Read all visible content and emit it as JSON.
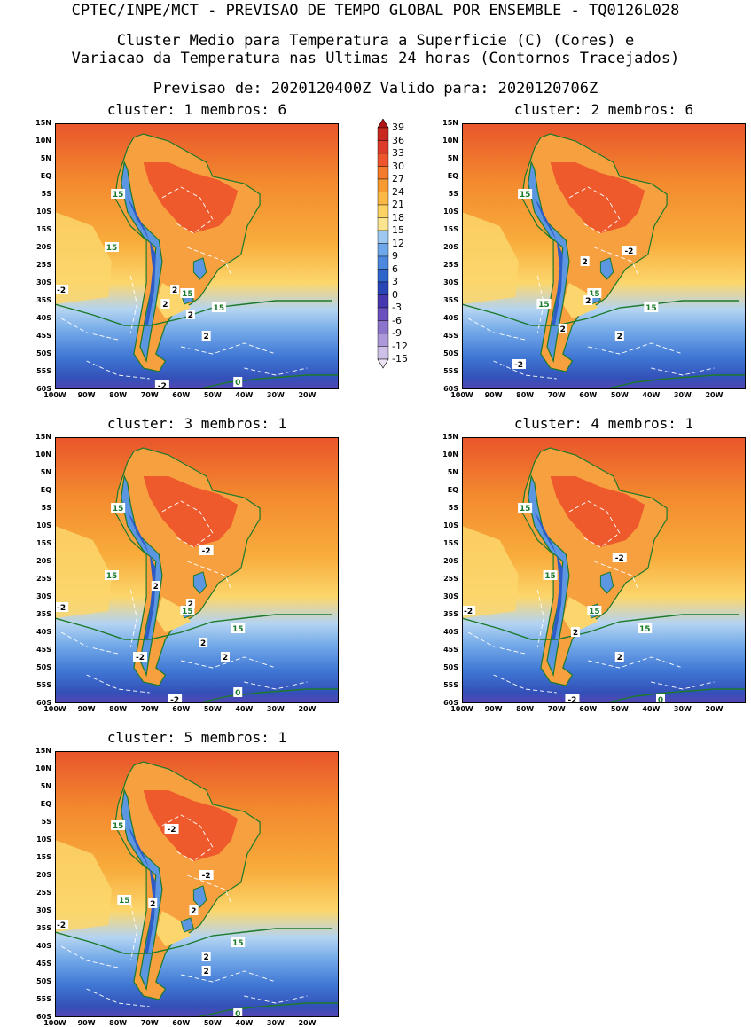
{
  "header": {
    "title": "CPTEC/INPE/MCT - PREVISAO DE TEMPO GLOBAL POR ENSEMBLE - TQ0126L028",
    "subtitle_line1": "Cluster Medio para Temperatura a Superficie (C) (Cores) e",
    "subtitle_line2": "Variacao da Temperatura nas Ultimas 24 horas (Contornos Tracejados)",
    "forecast_line": "Previsao de: 2020120400Z    Valido para: 2020120706Z"
  },
  "axes": {
    "lat_labels": [
      "15N",
      "10N",
      "5N",
      "EQ",
      "5S",
      "10S",
      "15S",
      "20S",
      "25S",
      "30S",
      "35S",
      "40S",
      "45S",
      "50S",
      "55S",
      "60S"
    ],
    "lon_labels": [
      "100W",
      "90W",
      "80W",
      "70W",
      "60W",
      "50W",
      "40W",
      "30W",
      "20W"
    ]
  },
  "colorbar": {
    "ticks": [
      "39",
      "36",
      "33",
      "30",
      "27",
      "24",
      "21",
      "18",
      "15",
      "12",
      "9",
      "6",
      "3",
      "0",
      "-3",
      "-6",
      "-9",
      "-12",
      "-15"
    ],
    "colors": [
      "#b01515",
      "#c82820",
      "#de3c2a",
      "#ee552c",
      "#f47a2c",
      "#f79a32",
      "#fab845",
      "#fcd265",
      "#fde58f",
      "#9cc8f2",
      "#6fa8ea",
      "#4c88de",
      "#2f64cc",
      "#2745b6",
      "#4636b0",
      "#6a50be",
      "#8c74cc",
      "#ad99da",
      "#cec0e8",
      "#ebe2f4"
    ]
  },
  "panels": [
    {
      "title": "cluster: 1   membros: 6",
      "labels": [
        {
          "t": "15",
          "lon": -80,
          "lat": -5,
          "c": "#1a7a2a"
        },
        {
          "t": "15",
          "lon": -82,
          "lat": -20,
          "c": "#1a7a2a"
        },
        {
          "t": "-2",
          "lon": -98,
          "lat": -32,
          "c": "#000"
        },
        {
          "t": "2",
          "lon": -62,
          "lat": -32,
          "c": "#000"
        },
        {
          "t": "15",
          "lon": -58,
          "lat": -33,
          "c": "#1a7a2a"
        },
        {
          "t": "2",
          "lon": -65,
          "lat": -36,
          "c": "#000"
        },
        {
          "t": "2",
          "lon": -57,
          "lat": -39,
          "c": "#000"
        },
        {
          "t": "15",
          "lon": -48,
          "lat": -37,
          "c": "#1a7a2a"
        },
        {
          "t": "2",
          "lon": -52,
          "lat": -45,
          "c": "#000"
        },
        {
          "t": "-2",
          "lon": -66,
          "lat": -59,
          "c": "#000"
        },
        {
          "t": "0",
          "lon": -42,
          "lat": -58,
          "c": "#1a7a2a"
        }
      ]
    },
    {
      "title": "cluster: 2   membros: 6",
      "labels": [
        {
          "t": "15",
          "lon": -80,
          "lat": -5,
          "c": "#1a7a2a"
        },
        {
          "t": "-2",
          "lon": -47,
          "lat": -21,
          "c": "#000"
        },
        {
          "t": "2",
          "lon": -61,
          "lat": -24,
          "c": "#000"
        },
        {
          "t": "15",
          "lon": -58,
          "lat": -33,
          "c": "#1a7a2a"
        },
        {
          "t": "2",
          "lon": -60,
          "lat": -35,
          "c": "#000"
        },
        {
          "t": "15",
          "lon": -74,
          "lat": -36,
          "c": "#1a7a2a"
        },
        {
          "t": "15",
          "lon": -40,
          "lat": -37,
          "c": "#1a7a2a"
        },
        {
          "t": "2",
          "lon": -68,
          "lat": -43,
          "c": "#000"
        },
        {
          "t": "2",
          "lon": -50,
          "lat": -45,
          "c": "#000"
        },
        {
          "t": "-2",
          "lon": -82,
          "lat": -53,
          "c": "#000"
        }
      ]
    },
    {
      "title": "cluster: 3   membros: 1",
      "labels": [
        {
          "t": "15",
          "lon": -80,
          "lat": -5,
          "c": "#1a7a2a"
        },
        {
          "t": "-2",
          "lon": -52,
          "lat": -17,
          "c": "#000"
        },
        {
          "t": "15",
          "lon": -82,
          "lat": -24,
          "c": "#1a7a2a"
        },
        {
          "t": "2",
          "lon": -68,
          "lat": -27,
          "c": "#000"
        },
        {
          "t": "-2",
          "lon": -98,
          "lat": -33,
          "c": "#000"
        },
        {
          "t": "2",
          "lon": -57,
          "lat": -32,
          "c": "#000"
        },
        {
          "t": "15",
          "lon": -58,
          "lat": -34,
          "c": "#1a7a2a"
        },
        {
          "t": "15",
          "lon": -42,
          "lat": -39,
          "c": "#1a7a2a"
        },
        {
          "t": "2",
          "lon": -53,
          "lat": -43,
          "c": "#000"
        },
        {
          "t": "-2",
          "lon": -73,
          "lat": -47,
          "c": "#000"
        },
        {
          "t": "2",
          "lon": -46,
          "lat": -47,
          "c": "#000"
        },
        {
          "t": "0",
          "lon": -42,
          "lat": -57,
          "c": "#1a7a2a"
        },
        {
          "t": "-2",
          "lon": -62,
          "lat": -59,
          "c": "#000"
        }
      ]
    },
    {
      "title": "cluster: 4   membros: 1",
      "labels": [
        {
          "t": "15",
          "lon": -80,
          "lat": -5,
          "c": "#1a7a2a"
        },
        {
          "t": "-2",
          "lon": -50,
          "lat": -19,
          "c": "#000"
        },
        {
          "t": "15",
          "lon": -72,
          "lat": -24,
          "c": "#1a7a2a"
        },
        {
          "t": "-2",
          "lon": -98,
          "lat": -34,
          "c": "#000"
        },
        {
          "t": "15",
          "lon": -58,
          "lat": -34,
          "c": "#1a7a2a"
        },
        {
          "t": "2",
          "lon": -64,
          "lat": -40,
          "c": "#000"
        },
        {
          "t": "15",
          "lon": -42,
          "lat": -39,
          "c": "#1a7a2a"
        },
        {
          "t": "2",
          "lon": -50,
          "lat": -47,
          "c": "#000"
        },
        {
          "t": "-2",
          "lon": -65,
          "lat": -59,
          "c": "#000"
        },
        {
          "t": "0",
          "lon": -37,
          "lat": -59,
          "c": "#1a7a2a"
        }
      ]
    },
    {
      "title": "cluster: 5   membros: 1",
      "labels": [
        {
          "t": "-2",
          "lon": -63,
          "lat": -7,
          "c": "#000"
        },
        {
          "t": "15",
          "lon": -80,
          "lat": -6,
          "c": "#1a7a2a"
        },
        {
          "t": "-2",
          "lon": -52,
          "lat": -20,
          "c": "#000"
        },
        {
          "t": "15",
          "lon": -78,
          "lat": -27,
          "c": "#1a7a2a"
        },
        {
          "t": "2",
          "lon": -69,
          "lat": -28,
          "c": "#000"
        },
        {
          "t": "2",
          "lon": -56,
          "lat": -30,
          "c": "#000"
        },
        {
          "t": "-2",
          "lon": -98,
          "lat": -34,
          "c": "#000"
        },
        {
          "t": "15",
          "lon": -42,
          "lat": -39,
          "c": "#1a7a2a"
        },
        {
          "t": "2",
          "lon": -52,
          "lat": -43,
          "c": "#000"
        },
        {
          "t": "2",
          "lon": -52,
          "lat": -47,
          "c": "#000"
        },
        {
          "t": "0",
          "lon": -42,
          "lat": -59,
          "c": "#1a7a2a"
        }
      ]
    }
  ]
}
